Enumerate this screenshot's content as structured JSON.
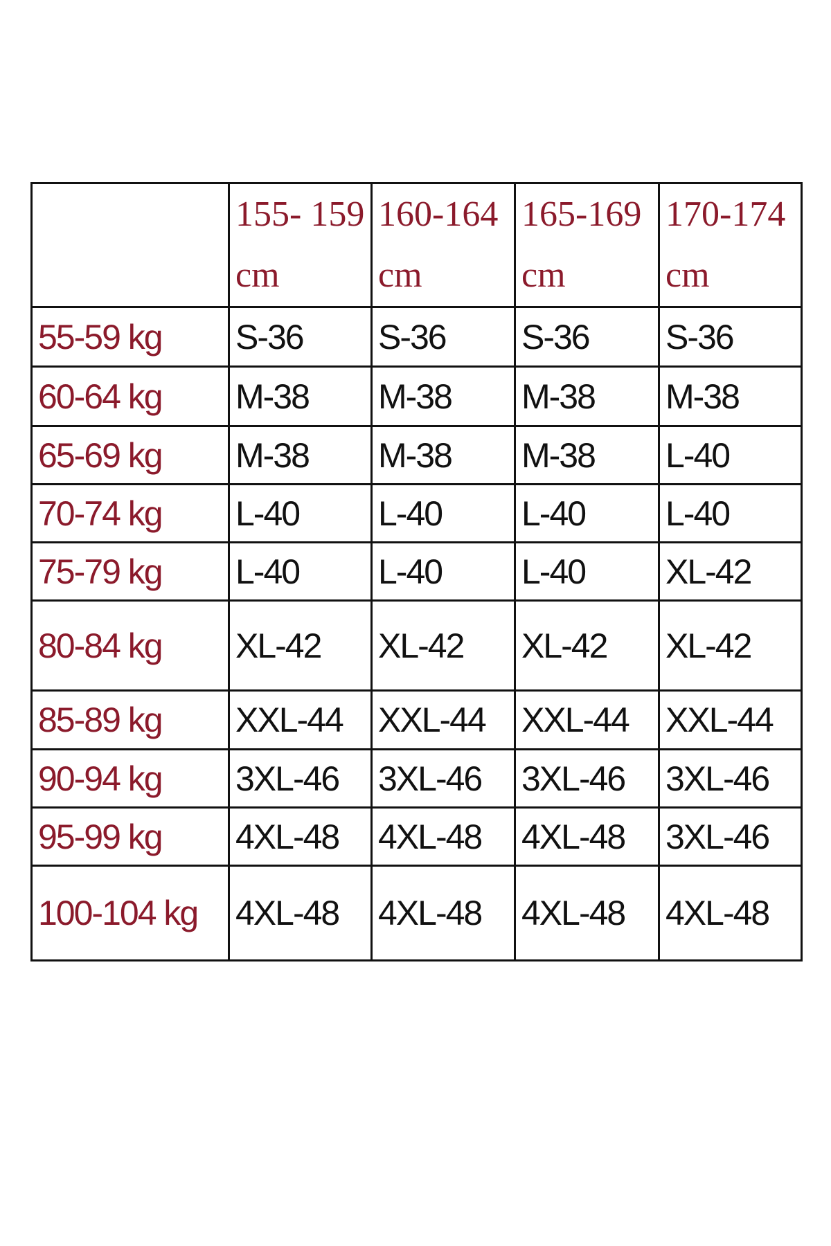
{
  "table": {
    "columns": [
      "155- 159\ncm",
      "160-164\ncm",
      "165-169\ncm",
      "170-174\ncm"
    ],
    "rows": [
      {
        "label": "55-59 kg",
        "sizes": [
          "S-36",
          "S-36",
          "S-36",
          "S-36"
        ]
      },
      {
        "label": "60-64 kg",
        "sizes": [
          "M-38",
          "M-38",
          "M-38",
          "M-38"
        ]
      },
      {
        "label": "65-69 kg",
        "sizes": [
          "M-38",
          "M-38",
          "M-38",
          "L-40"
        ]
      },
      {
        "label": "70-74 kg",
        "sizes": [
          "L-40",
          "L-40",
          "L-40",
          "L-40"
        ]
      },
      {
        "label": "75-79 kg",
        "sizes": [
          "L-40",
          "L-40",
          "L-40",
          "XL-42"
        ]
      },
      {
        "label": "80-84 kg",
        "sizes": [
          "XL-42",
          "XL-42",
          "XL-42",
          "XL-42"
        ]
      },
      {
        "label": "85-89 kg",
        "sizes": [
          "XXL-44",
          "XXL-44",
          "XXL-44",
          "XXL-44"
        ]
      },
      {
        "label": "90-94 kg",
        "sizes": [
          "3XL-46",
          "3XL-46",
          "3XL-46",
          "3XL-46"
        ]
      },
      {
        "label": "95-99 kg",
        "sizes": [
          "4XL-48",
          "4XL-48",
          "4XL-48",
          "3XL-46"
        ]
      },
      {
        "label": "100-104 kg",
        "sizes": [
          "4XL-48",
          "4XL-48",
          "4XL-48",
          "4XL-48"
        ]
      }
    ]
  }
}
